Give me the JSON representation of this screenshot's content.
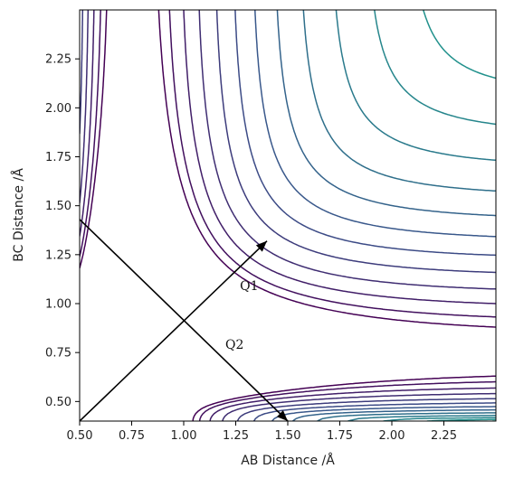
{
  "chart_data": {
    "type": "contour",
    "title": "",
    "xlabel": "AB Distance /Å",
    "ylabel": "BC Distance /Å",
    "xlim": [
      0.5,
      2.5
    ],
    "ylim": [
      0.4,
      2.5
    ],
    "xticks": [
      "0.50",
      "0.75",
      "1.00",
      "1.25",
      "1.50",
      "1.75",
      "2.00",
      "2.25"
    ],
    "yticks": [
      "0.50",
      "0.75",
      "1.00",
      "1.25",
      "1.50",
      "1.75",
      "2.00",
      "2.25"
    ],
    "xtick_values": [
      0.5,
      0.75,
      1.0,
      1.25,
      1.5,
      1.75,
      2.0,
      2.25
    ],
    "ytick_values": [
      0.5,
      0.75,
      1.0,
      1.25,
      1.5,
      1.75,
      2.0,
      2.25
    ],
    "colormap": [
      "#440154",
      "#3b528b",
      "#21918c",
      "#5ec962",
      "#fde725"
    ],
    "potential": {
      "description_free": true,
      "De": 4.75,
      "beta": 2.0,
      "re": 0.74,
      "k": 0.3,
      "levels": [
        -4.55,
        -4.35,
        -4.05,
        -3.7,
        -3.3,
        -2.9,
        -2.5,
        -2.1,
        -1.7,
        -1.3,
        -0.95,
        -0.65,
        -0.4,
        -0.2,
        -0.05,
        0.1,
        0.4,
        0.9,
        1.6,
        2.6,
        4.0,
        6.0,
        9.0
      ]
    },
    "arrows": [
      {
        "from": [
          0.5,
          1.43
        ],
        "to": [
          1.5,
          0.4
        ]
      },
      {
        "from": [
          0.5,
          0.4
        ],
        "to": [
          1.4,
          1.32
        ]
      }
    ],
    "annotations": [
      {
        "text": "Q1",
        "x": 1.27,
        "y": 1.07
      },
      {
        "text": "Q2",
        "x": 1.2,
        "y": 0.77
      }
    ],
    "grid": false,
    "legend": "none"
  }
}
